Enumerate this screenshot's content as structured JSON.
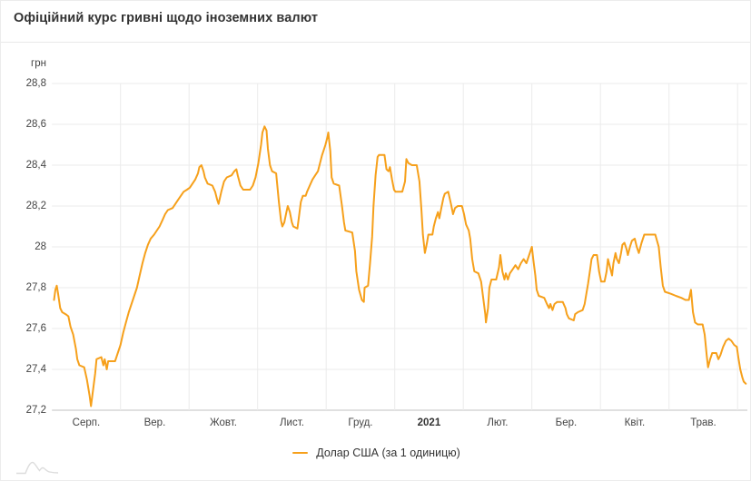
{
  "header": {
    "title": "Офіційний курс гривні щодо іноземних валют"
  },
  "y_axis": {
    "unit": "грн",
    "ticks": [
      {
        "value": 28.8,
        "label": "28,8"
      },
      {
        "value": 28.6,
        "label": "28,6"
      },
      {
        "value": 28.4,
        "label": "28,4"
      },
      {
        "value": 28.2,
        "label": "28,2"
      },
      {
        "value": 28.0,
        "label": "28"
      },
      {
        "value": 27.8,
        "label": "27,8"
      },
      {
        "value": 27.6,
        "label": "27,6"
      },
      {
        "value": 27.4,
        "label": "27,4"
      },
      {
        "value": 27.2,
        "label": "27,2"
      }
    ]
  },
  "x_axis": {
    "ticks": [
      {
        "label": "Серп.",
        "bold": false
      },
      {
        "label": "Вер.",
        "bold": false
      },
      {
        "label": "Жовт.",
        "bold": false
      },
      {
        "label": "Лист.",
        "bold": false
      },
      {
        "label": "Груд.",
        "bold": false
      },
      {
        "label": "2021",
        "bold": true
      },
      {
        "label": "Лют.",
        "bold": false
      },
      {
        "label": "Бер.",
        "bold": false
      },
      {
        "label": "Квіт.",
        "bold": false
      },
      {
        "label": "Трав.",
        "bold": false
      }
    ]
  },
  "legend": {
    "label": "Долар США (за 1 одиницю)"
  },
  "colors": {
    "line": "#f6a01b",
    "grid": "#ebebeb",
    "axis_line": "#d6d6d6",
    "title_text": "#333333",
    "tick_text": "#444444",
    "divider": "#e8e8e8",
    "watermark": "#dcdcdc"
  },
  "chart_data": {
    "type": "line",
    "title": "Офіційний курс гривні щодо іноземних валют",
    "ylabel": "грн",
    "ylim": [
      27.2,
      28.8
    ],
    "y_tick_step": 0.2,
    "grid": true,
    "legend_position": "bottom",
    "x_categories": [
      "Серп.",
      "Вер.",
      "Жовт.",
      "Лист.",
      "Груд.",
      "2021",
      "Лют.",
      "Бер.",
      "Квіт.",
      "Трав."
    ],
    "x_unit": "fractional months since 2020-08-01 (0 = Aug 2020, 5 = Jan 2021)",
    "series": [
      {
        "name": "Долар США (за 1 одиницю)",
        "color": "#f6a01b",
        "points": [
          [
            0.03,
            27.74
          ],
          [
            0.05,
            27.79
          ],
          [
            0.07,
            27.81
          ],
          [
            0.09,
            27.77
          ],
          [
            0.12,
            27.7
          ],
          [
            0.15,
            27.68
          ],
          [
            0.2,
            27.67
          ],
          [
            0.24,
            27.66
          ],
          [
            0.27,
            27.61
          ],
          [
            0.31,
            27.57
          ],
          [
            0.35,
            27.5
          ],
          [
            0.37,
            27.45
          ],
          [
            0.4,
            27.42
          ],
          [
            0.47,
            27.41
          ],
          [
            0.51,
            27.35
          ],
          [
            0.55,
            27.27
          ],
          [
            0.57,
            27.22
          ],
          [
            0.6,
            27.3
          ],
          [
            0.63,
            27.38
          ],
          [
            0.65,
            27.45
          ],
          [
            0.72,
            27.46
          ],
          [
            0.75,
            27.42
          ],
          [
            0.77,
            27.45
          ],
          [
            0.8,
            27.4
          ],
          [
            0.82,
            27.44
          ],
          [
            0.92,
            27.44
          ],
          [
            0.96,
            27.48
          ],
          [
            1.0,
            27.52
          ],
          [
            1.04,
            27.58
          ],
          [
            1.08,
            27.63
          ],
          [
            1.12,
            27.68
          ],
          [
            1.16,
            27.72
          ],
          [
            1.2,
            27.76
          ],
          [
            1.24,
            27.8
          ],
          [
            1.28,
            27.86
          ],
          [
            1.32,
            27.92
          ],
          [
            1.36,
            27.97
          ],
          [
            1.4,
            28.01
          ],
          [
            1.44,
            28.04
          ],
          [
            1.49,
            28.06
          ],
          [
            1.53,
            28.08
          ],
          [
            1.57,
            28.1
          ],
          [
            1.61,
            28.13
          ],
          [
            1.65,
            28.16
          ],
          [
            1.69,
            28.18
          ],
          [
            1.76,
            28.19
          ],
          [
            1.8,
            28.21
          ],
          [
            1.84,
            28.23
          ],
          [
            1.88,
            28.25
          ],
          [
            1.92,
            28.27
          ],
          [
            1.97,
            28.28
          ],
          [
            2.01,
            28.29
          ],
          [
            2.05,
            28.31
          ],
          [
            2.09,
            28.33
          ],
          [
            2.13,
            28.36
          ],
          [
            2.15,
            28.39
          ],
          [
            2.18,
            28.4
          ],
          [
            2.21,
            28.37
          ],
          [
            2.23,
            28.34
          ],
          [
            2.27,
            28.31
          ],
          [
            2.34,
            28.3
          ],
          [
            2.38,
            28.27
          ],
          [
            2.41,
            28.23
          ],
          [
            2.43,
            28.21
          ],
          [
            2.47,
            28.27
          ],
          [
            2.51,
            28.32
          ],
          [
            2.55,
            28.34
          ],
          [
            2.62,
            28.35
          ],
          [
            2.66,
            28.37
          ],
          [
            2.69,
            28.38
          ],
          [
            2.71,
            28.35
          ],
          [
            2.75,
            28.3
          ],
          [
            2.79,
            28.28
          ],
          [
            2.89,
            28.28
          ],
          [
            2.93,
            28.3
          ],
          [
            2.97,
            28.34
          ],
          [
            3.01,
            28.41
          ],
          [
            3.05,
            28.5
          ],
          [
            3.07,
            28.56
          ],
          [
            3.1,
            28.59
          ],
          [
            3.13,
            28.57
          ],
          [
            3.15,
            28.48
          ],
          [
            3.18,
            28.4
          ],
          [
            3.21,
            28.37
          ],
          [
            3.27,
            28.36
          ],
          [
            3.31,
            28.22
          ],
          [
            3.34,
            28.13
          ],
          [
            3.36,
            28.1
          ],
          [
            3.39,
            28.12
          ],
          [
            3.42,
            28.17
          ],
          [
            3.44,
            28.2
          ],
          [
            3.47,
            28.17
          ],
          [
            3.5,
            28.12
          ],
          [
            3.52,
            28.1
          ],
          [
            3.58,
            28.09
          ],
          [
            3.6,
            28.14
          ],
          [
            3.63,
            28.22
          ],
          [
            3.66,
            28.25
          ],
          [
            3.7,
            28.25
          ],
          [
            3.72,
            28.27
          ],
          [
            3.76,
            28.3
          ],
          [
            3.8,
            28.33
          ],
          [
            3.84,
            28.35
          ],
          [
            3.88,
            28.37
          ],
          [
            3.91,
            28.41
          ],
          [
            3.94,
            28.45
          ],
          [
            3.96,
            28.47
          ],
          [
            3.99,
            28.5
          ],
          [
            4.02,
            28.54
          ],
          [
            4.03,
            28.56
          ],
          [
            4.06,
            28.47
          ],
          [
            4.08,
            28.34
          ],
          [
            4.11,
            28.31
          ],
          [
            4.19,
            28.3
          ],
          [
            4.23,
            28.2
          ],
          [
            4.26,
            28.12
          ],
          [
            4.28,
            28.08
          ],
          [
            4.38,
            28.07
          ],
          [
            4.42,
            27.98
          ],
          [
            4.44,
            27.88
          ],
          [
            4.48,
            27.79
          ],
          [
            4.52,
            27.74
          ],
          [
            4.55,
            27.73
          ],
          [
            4.56,
            27.8
          ],
          [
            4.61,
            27.81
          ],
          [
            4.64,
            27.92
          ],
          [
            4.67,
            28.05
          ],
          [
            4.69,
            28.2
          ],
          [
            4.72,
            28.35
          ],
          [
            4.75,
            28.44
          ],
          [
            4.77,
            28.45
          ],
          [
            4.85,
            28.45
          ],
          [
            4.88,
            28.38
          ],
          [
            4.91,
            28.37
          ],
          [
            4.93,
            28.39
          ],
          [
            4.96,
            28.33
          ],
          [
            4.99,
            28.28
          ],
          [
            5.01,
            28.27
          ],
          [
            5.11,
            28.27
          ],
          [
            5.15,
            28.32
          ],
          [
            5.17,
            28.43
          ],
          [
            5.2,
            28.41
          ],
          [
            5.25,
            28.4
          ],
          [
            5.32,
            28.4
          ],
          [
            5.36,
            28.32
          ],
          [
            5.39,
            28.18
          ],
          [
            5.41,
            28.06
          ],
          [
            5.44,
            27.97
          ],
          [
            5.47,
            28.02
          ],
          [
            5.49,
            28.06
          ],
          [
            5.55,
            28.06
          ],
          [
            5.57,
            28.1
          ],
          [
            5.6,
            28.14
          ],
          [
            5.63,
            28.17
          ],
          [
            5.65,
            28.14
          ],
          [
            5.68,
            28.19
          ],
          [
            5.71,
            28.24
          ],
          [
            5.73,
            28.26
          ],
          [
            5.78,
            28.27
          ],
          [
            5.82,
            28.21
          ],
          [
            5.85,
            28.16
          ],
          [
            5.88,
            28.19
          ],
          [
            5.92,
            28.2
          ],
          [
            5.98,
            28.2
          ],
          [
            6.01,
            28.16
          ],
          [
            6.04,
            28.11
          ],
          [
            6.08,
            28.08
          ],
          [
            6.1,
            28.04
          ],
          [
            6.13,
            27.94
          ],
          [
            6.16,
            27.88
          ],
          [
            6.22,
            27.87
          ],
          [
            6.26,
            27.83
          ],
          [
            6.29,
            27.75
          ],
          [
            6.32,
            27.67
          ],
          [
            6.33,
            27.63
          ],
          [
            6.36,
            27.7
          ],
          [
            6.38,
            27.8
          ],
          [
            6.41,
            27.84
          ],
          [
            6.48,
            27.84
          ],
          [
            6.52,
            27.9
          ],
          [
            6.54,
            27.96
          ],
          [
            6.57,
            27.88
          ],
          [
            6.6,
            27.84
          ],
          [
            6.62,
            27.87
          ],
          [
            6.65,
            27.84
          ],
          [
            6.68,
            27.87
          ],
          [
            6.72,
            27.89
          ],
          [
            6.76,
            27.91
          ],
          [
            6.8,
            27.89
          ],
          [
            6.84,
            27.92
          ],
          [
            6.88,
            27.94
          ],
          [
            6.92,
            27.92
          ],
          [
            6.96,
            27.96
          ],
          [
            7.0,
            28.0
          ],
          [
            7.02,
            27.94
          ],
          [
            7.05,
            27.86
          ],
          [
            7.07,
            27.79
          ],
          [
            7.1,
            27.76
          ],
          [
            7.18,
            27.75
          ],
          [
            7.22,
            27.72
          ],
          [
            7.25,
            27.7
          ],
          [
            7.27,
            27.72
          ],
          [
            7.3,
            27.69
          ],
          [
            7.33,
            27.72
          ],
          [
            7.37,
            27.73
          ],
          [
            7.45,
            27.73
          ],
          [
            7.49,
            27.7
          ],
          [
            7.51,
            27.67
          ],
          [
            7.54,
            27.65
          ],
          [
            7.61,
            27.64
          ],
          [
            7.63,
            27.67
          ],
          [
            7.67,
            27.68
          ],
          [
            7.74,
            27.69
          ],
          [
            7.77,
            27.72
          ],
          [
            7.79,
            27.76
          ],
          [
            7.82,
            27.82
          ],
          [
            7.85,
            27.89
          ],
          [
            7.87,
            27.94
          ],
          [
            7.9,
            27.96
          ],
          [
            7.95,
            27.96
          ],
          [
            7.98,
            27.88
          ],
          [
            8.01,
            27.83
          ],
          [
            8.06,
            27.83
          ],
          [
            8.09,
            27.88
          ],
          [
            8.11,
            27.94
          ],
          [
            8.14,
            27.9
          ],
          [
            8.17,
            27.86
          ],
          [
            8.19,
            27.92
          ],
          [
            8.22,
            27.97
          ],
          [
            8.24,
            27.94
          ],
          [
            8.27,
            27.92
          ],
          [
            8.3,
            27.97
          ],
          [
            8.32,
            28.01
          ],
          [
            8.35,
            28.02
          ],
          [
            8.38,
            27.99
          ],
          [
            8.4,
            27.96
          ],
          [
            8.43,
            28.0
          ],
          [
            8.46,
            28.03
          ],
          [
            8.5,
            28.04
          ],
          [
            8.53,
            28.0
          ],
          [
            8.56,
            27.97
          ],
          [
            8.6,
            28.02
          ],
          [
            8.64,
            28.06
          ],
          [
            8.8,
            28.06
          ],
          [
            8.85,
            28.0
          ],
          [
            8.88,
            27.9
          ],
          [
            8.91,
            27.81
          ],
          [
            8.94,
            27.78
          ],
          [
            9.03,
            27.77
          ],
          [
            9.1,
            27.76
          ],
          [
            9.18,
            27.75
          ],
          [
            9.24,
            27.74
          ],
          [
            9.29,
            27.74
          ],
          [
            9.32,
            27.79
          ],
          [
            9.35,
            27.68
          ],
          [
            9.38,
            27.63
          ],
          [
            9.42,
            27.62
          ],
          [
            9.49,
            27.62
          ],
          [
            9.52,
            27.57
          ],
          [
            9.55,
            27.47
          ],
          [
            9.57,
            27.41
          ],
          [
            9.6,
            27.45
          ],
          [
            9.63,
            27.48
          ],
          [
            9.69,
            27.48
          ],
          [
            9.72,
            27.45
          ],
          [
            9.75,
            27.47
          ],
          [
            9.79,
            27.51
          ],
          [
            9.83,
            27.54
          ],
          [
            9.87,
            27.55
          ],
          [
            9.91,
            27.54
          ],
          [
            9.95,
            27.52
          ],
          [
            9.99,
            27.51
          ],
          [
            10.01,
            27.46
          ],
          [
            10.04,
            27.4
          ],
          [
            10.07,
            27.36
          ],
          [
            10.09,
            27.34
          ],
          [
            10.12,
            27.33
          ]
        ]
      }
    ]
  }
}
